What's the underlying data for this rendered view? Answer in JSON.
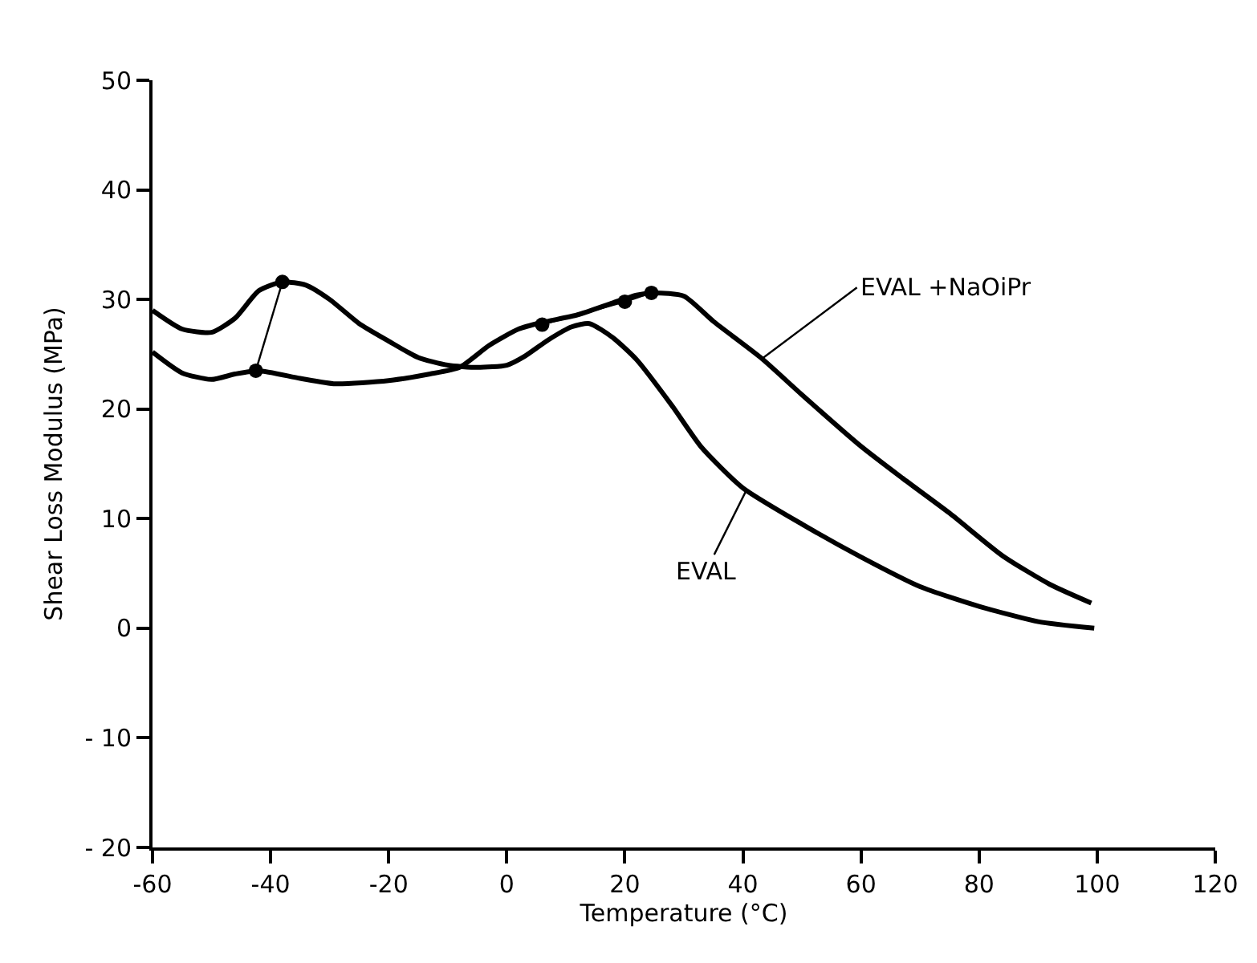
{
  "chart_data": {
    "type": "line",
    "xlabel": "Temperature (°C)",
    "ylabel": "Shear Loss Modulus (MPa)",
    "xlim": [
      -60,
      120
    ],
    "xticks": [
      -60,
      -40,
      -20,
      0,
      20,
      40,
      60,
      80,
      100,
      120
    ],
    "ylim": [
      -20,
      50
    ],
    "yticks": [
      {
        "value": -20,
        "label": "- 20"
      },
      {
        "value": -10,
        "label": "- 10"
      },
      0,
      10,
      20,
      30,
      40,
      50
    ],
    "line_style": "solid",
    "series": [
      {
        "color": "#000000",
        "marker": "none",
        "x": [
          -60,
          -55,
          -50,
          -46,
          -42,
          -38,
          -34,
          -30,
          -25,
          -20,
          -15,
          -10,
          -5,
          0,
          3,
          7,
          11,
          14,
          18,
          22,
          28,
          33,
          40,
          50,
          60,
          70,
          80,
          90,
          99.5
        ],
        "values": [
          29,
          27.3,
          27.0,
          28.3,
          30.8,
          31.6,
          31.3,
          30.0,
          27.8,
          26.2,
          24.7,
          24.0,
          23.8,
          24.0,
          24.8,
          26.3,
          27.5,
          27.8,
          26.5,
          24.5,
          20.3,
          16.5,
          12.8,
          9.5,
          6.5,
          3.8,
          2.0,
          0.6,
          0
        ]
      },
      {
        "color": "#000000",
        "marker": "none",
        "x": [
          -60,
          -55,
          -50,
          -46,
          -42,
          -35,
          -29,
          -20,
          -13,
          -8,
          -3,
          2,
          6,
          12,
          18,
          22,
          25,
          30,
          35,
          43,
          50,
          60,
          67,
          75,
          84,
          92,
          99
        ],
        "values": [
          25.2,
          23.3,
          22.7,
          23.2,
          23.5,
          22.8,
          22.3,
          22.6,
          23.2,
          23.8,
          25.8,
          27.3,
          27.9,
          28.6,
          29.7,
          30.4,
          30.6,
          30.3,
          28,
          24.7,
          21.3,
          16.6,
          13.7,
          10.5,
          6.6,
          4,
          2.3
        ]
      },
      {
        "color": "#000000",
        "marker": "circle",
        "x": [
          -42.5,
          -38
        ],
        "values": [
          23.5,
          31.6
        ]
      },
      {
        "color": "#000000",
        "marker": "circle",
        "x": [
          6,
          20,
          24.5
        ],
        "values": [
          27.7,
          29.8,
          30.6
        ]
      }
    ],
    "annotations": [
      {
        "text": "EVAL +NaOiPr",
        "x": 43,
        "y": 24.5
      },
      {
        "text": "EVAL",
        "x": 40.5,
        "y": 12.5
      }
    ]
  }
}
